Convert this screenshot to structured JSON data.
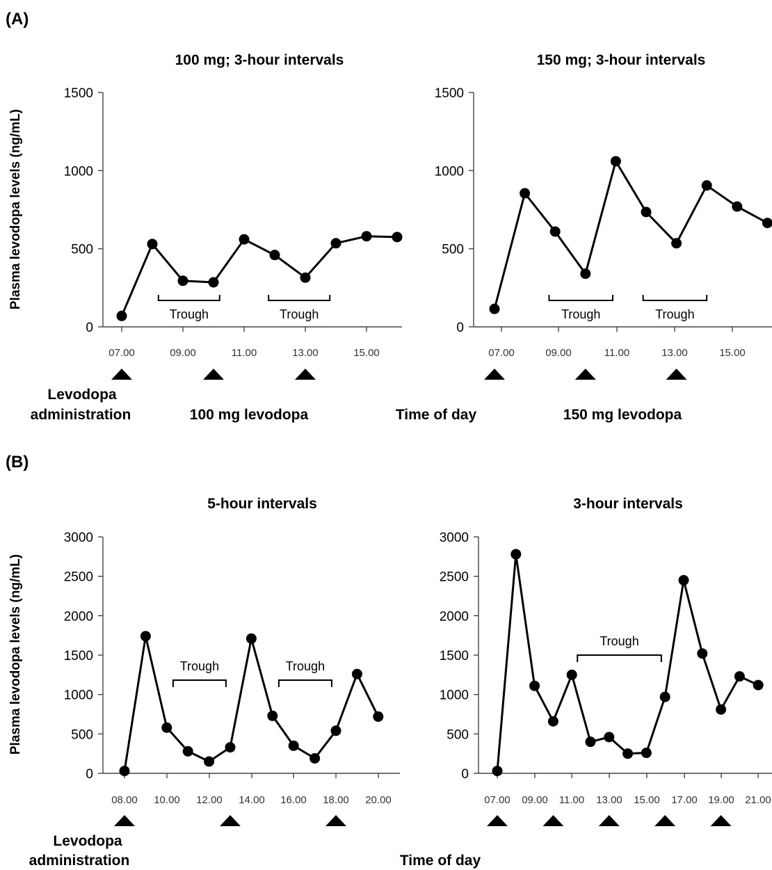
{
  "panels": {
    "A": {
      "label": "(A)",
      "ylabel": "Plasma levodopa levels (ng/mL)",
      "admin_label": [
        "Levodopa",
        "administration"
      ],
      "time_label": "Time of day",
      "charts": [
        {
          "type": "line",
          "title": "100 mg; 3-hour intervals",
          "bottom_label": "100 mg levodopa",
          "x_ticks": [
            "07.00",
            "09.00",
            "11.00",
            "13.00",
            "15.00"
          ],
          "y_ticks": [
            "0",
            "500",
            "1000",
            "1500"
          ],
          "ylim": [
            0,
            1500
          ],
          "x": [
            7,
            8,
            9,
            10,
            11,
            12,
            13,
            14,
            15,
            16
          ],
          "y": [
            70,
            530,
            295,
            285,
            560,
            460,
            315,
            535,
            580,
            575
          ],
          "administration": [
            7,
            10,
            13
          ],
          "troughs": [
            {
              "text": "Trough",
              "from": 8.2,
              "to": 10.2
            },
            {
              "text": "Trough",
              "from": 11.8,
              "to": 13.8
            }
          ]
        },
        {
          "type": "line",
          "title": "150 mg; 3-hour intervals",
          "bottom_label": "150 mg levodopa",
          "x_ticks": [
            "07.00",
            "09.00",
            "11.00",
            "13.00",
            "15.00"
          ],
          "y_ticks": [
            "0",
            "500",
            "1000",
            "1500"
          ],
          "ylim": [
            0,
            1500
          ],
          "x": [
            7,
            8,
            9,
            10,
            11,
            12,
            13,
            14,
            15,
            16
          ],
          "y": [
            115,
            855,
            610,
            340,
            1060,
            735,
            535,
            905,
            770,
            665
          ],
          "administration": [
            7,
            10,
            13
          ],
          "troughs": [
            {
              "text": "Trough",
              "from": 8.8,
              "to": 10.9
            },
            {
              "text": "Trough",
              "from": 11.9,
              "to": 14
            }
          ]
        }
      ]
    },
    "B": {
      "label": "(B)",
      "ylabel": "Plasma levodopa levels (ng/mL)",
      "admin_label": [
        "Levodopa",
        "administration"
      ],
      "time_label": "Time of day",
      "charts": [
        {
          "type": "line",
          "title": "5-hour intervals",
          "x_ticks": [
            "08.00",
            "10.00",
            "12.00",
            "14.00",
            "16.00",
            "18.00",
            "20.00"
          ],
          "y_ticks": [
            "0",
            "500",
            "1000",
            "1500",
            "2000",
            "2500",
            "3000"
          ],
          "ylim": [
            0,
            3000
          ],
          "x": [
            8,
            9,
            10,
            11,
            12,
            13,
            14,
            15,
            16,
            17,
            18,
            19,
            20
          ],
          "y": [
            30,
            1740,
            580,
            280,
            150,
            330,
            1710,
            730,
            350,
            190,
            540,
            1260,
            720
          ],
          "administration": [
            8,
            13,
            18
          ],
          "troughs": [
            {
              "text": "Trough",
              "from": 10.3,
              "to": 12.8
            },
            {
              "text": "Trough",
              "from": 15.3,
              "to": 17.8
            }
          ]
        },
        {
          "type": "line",
          "title": "3-hour intervals",
          "x_ticks": [
            "07.00",
            "09.00",
            "11.00",
            "13.00",
            "15.00",
            "17.00",
            "19.00",
            "21.00"
          ],
          "y_ticks": [
            "0",
            "500",
            "1000",
            "1500",
            "2000",
            "2500",
            "3000"
          ],
          "ylim": [
            0,
            3000
          ],
          "x": [
            7,
            8,
            9,
            10,
            11,
            12,
            13,
            14,
            15,
            16,
            17,
            18,
            19,
            20,
            21
          ],
          "y": [
            30,
            2780,
            1110,
            660,
            1250,
            400,
            460,
            250,
            260,
            970,
            2450,
            1520,
            810,
            1230,
            1120
          ],
          "administration": [
            7,
            10,
            13,
            16,
            19
          ],
          "troughs": [
            {
              "text": "Trough",
              "from": 11.3,
              "to": 15.8
            }
          ]
        }
      ]
    }
  }
}
